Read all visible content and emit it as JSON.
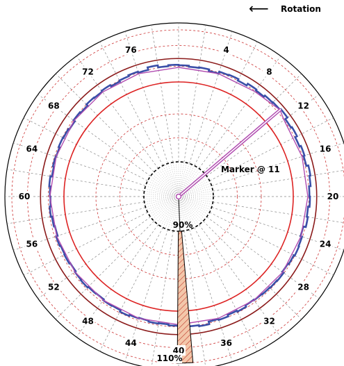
{
  "chart_data": {
    "type": "polar",
    "rotation_label": "Rotation",
    "angle_ticks": [
      "4",
      "8",
      "12",
      "16",
      "20",
      "24",
      "28",
      "32",
      "36",
      "40",
      "44",
      "48",
      "52",
      "56",
      "60",
      "64",
      "68",
      "72",
      "76"
    ],
    "inner_ring_label": "90%",
    "outer_edge_label": "110%",
    "marker": {
      "label": "Marker @ 11",
      "position": 11
    },
    "reference_rings": [
      {
        "value": 90,
        "color": "#000000",
        "style": "dashed"
      },
      {
        "value": 100,
        "color": "#dd2222",
        "style": "solid"
      },
      {
        "value": 104.5,
        "color": "#8b1a1a",
        "style": "solid"
      }
    ],
    "series": [
      {
        "color": "#3a4fa8",
        "style": "step",
        "positions": [
          0,
          1,
          2,
          3,
          4,
          5,
          6,
          7,
          8,
          9,
          10,
          11,
          12,
          13,
          14,
          15,
          16,
          17,
          18,
          19,
          20,
          21,
          22,
          23,
          24,
          25,
          26,
          27,
          28,
          29,
          30,
          31,
          32,
          33,
          34,
          35,
          36,
          37,
          38,
          39,
          40,
          41,
          42,
          43,
          44,
          45,
          46,
          47,
          48,
          49,
          50,
          51,
          52,
          53,
          54,
          55,
          56,
          57,
          58,
          59,
          60,
          61,
          62,
          63,
          64,
          65,
          66,
          67,
          68,
          69,
          70,
          71,
          72,
          73,
          74,
          75,
          76,
          77,
          78,
          79
        ],
        "values": [
          103.2,
          103.0,
          103.1,
          102.8,
          103.2,
          103.3,
          103.0,
          103.4,
          103.2,
          103.5,
          103.6,
          103.8,
          103.3,
          103.5,
          103.1,
          103.4,
          103.2,
          103.6,
          103.4,
          103.1,
          103.2,
          102.9,
          103.1,
          102.6,
          102.9,
          103.0,
          102.8,
          102.6,
          102.9,
          102.8,
          102.7,
          102.6,
          102.5,
          102.8,
          102.6,
          102.9,
          102.7,
          103.2,
          103.0,
          104.0,
          102.8,
          102.6,
          102.7,
          102.5,
          102.6,
          102.8,
          102.5,
          102.6,
          102.4,
          102.5,
          102.7,
          102.6,
          102.4,
          102.6,
          102.5,
          102.7,
          102.4,
          102.6,
          102.8,
          102.6,
          102.7,
          102.9,
          102.6,
          102.8,
          102.7,
          102.9,
          102.8,
          102.6,
          102.9,
          102.7,
          103.0,
          102.9,
          103.1,
          102.8,
          103.0,
          103.2,
          103.0,
          103.5,
          103.1,
          103.3
        ]
      },
      {
        "color": "#b04cb0",
        "style": "line",
        "positions": [
          0,
          4,
          8,
          11,
          12,
          16,
          20,
          24,
          28,
          32,
          36,
          40,
          44,
          48,
          52,
          56,
          60,
          64,
          68,
          72,
          76,
          80
        ],
        "values": [
          102.8,
          102.8,
          102.9,
          103.6,
          103.0,
          102.9,
          102.8,
          102.7,
          102.7,
          102.6,
          102.6,
          102.6,
          102.6,
          102.6,
          102.6,
          102.6,
          102.7,
          102.7,
          102.8,
          102.8,
          102.8,
          102.8
        ]
      }
    ],
    "wedge": {
      "position": 39.5,
      "from": 90,
      "to": 110,
      "width": 1.2,
      "fill_color": "#f3c7aa",
      "hatch_color": "#c0392b"
    }
  }
}
